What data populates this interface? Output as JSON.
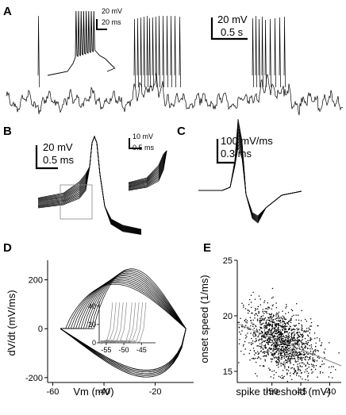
{
  "figure": {
    "panels": {
      "A": {
        "label": "A",
        "scalebar_inset": {
          "v": "20 mV",
          "t": "20 ms"
        },
        "scalebar_main": {
          "v": "20 mV",
          "t": "0.5 s"
        }
      },
      "B": {
        "label": "B",
        "scalebar_main": {
          "v": "20 mV",
          "t": "0.5 ms"
        },
        "scalebar_inset": {
          "v": "10 mV",
          "t": "0.5 ms"
        }
      },
      "C": {
        "label": "C",
        "scalebar": {
          "v": "100 mV/ms",
          "t": "0.3 ms"
        }
      },
      "D": {
        "label": "D"
      },
      "E": {
        "label": "E"
      }
    }
  },
  "chart_data": [
    {
      "type": "line",
      "panel": "D",
      "xlabel": "Vm (mV)",
      "ylabel": "dV/dt (mV/ms)",
      "xlim": [
        -62,
        -5
      ],
      "ylim": [
        -220,
        280
      ],
      "xticks": [
        -60,
        -40,
        -20
      ],
      "yticks": [
        -200,
        0,
        200
      ],
      "series_description": "Phase plots of ~12 action potentials; thresholds between -55 and -44 mV; peak upstroke ~190-260 mV/ms near -25 mV; minimum ~ -170 to -200 mV/ms near -25 mV",
      "thresholds_mV": [
        -55,
        -54,
        -53,
        -52,
        -51,
        -50,
        -49,
        -48,
        -47,
        -46,
        -45,
        -44
      ],
      "inset": {
        "xlim": [
          -57,
          -41
        ],
        "ylim": [
          0,
          45
        ],
        "xticks": [
          -55,
          -50,
          -45
        ],
        "yticks": [
          0,
          20,
          40
        ],
        "onsets_mV": [
          -54.5,
          -53.5,
          -52.5,
          -51.5,
          -50.5,
          -49,
          -48,
          -47,
          -46,
          -45
        ]
      }
    },
    {
      "type": "scatter",
      "panel": "E",
      "xlabel": "spike threshold (mV)",
      "ylabel": "onset speed (1/ms)",
      "xlim": [
        -56,
        -38
      ],
      "ylim": [
        14,
        25
      ],
      "xticks": [
        -50,
        -45,
        -40
      ],
      "yticks": [
        15,
        20,
        25
      ],
      "n_points": 1400,
      "point_summary": {
        "x_mean": -48.5,
        "x_sd": 3.2,
        "y_mean": 17.6,
        "y_sd": 1.6
      },
      "regression": {
        "x": [
          -56,
          -38
        ],
        "y": [
          19.3,
          15.5
        ]
      }
    }
  ]
}
